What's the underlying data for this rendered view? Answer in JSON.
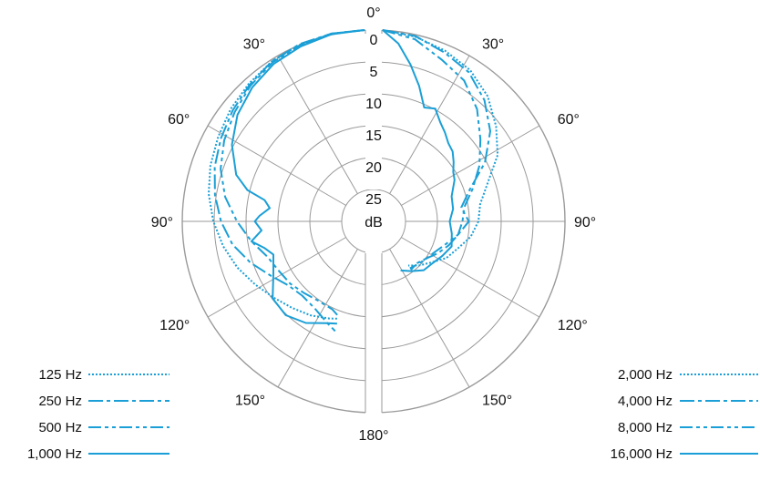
{
  "chart_data": {
    "type": "polar",
    "unit": "dB",
    "radial_ticks": [
      "0",
      "5",
      "10",
      "15",
      "20",
      "25"
    ],
    "radial_range": [
      0,
      25
    ],
    "angle_labels": {
      "left": [
        "0°",
        "30°",
        "60°",
        "90°",
        "120°",
        "150°",
        "180°"
      ],
      "right": [
        "30°",
        "60°",
        "90°",
        "120°",
        "150°"
      ]
    },
    "angle_values": [
      0,
      30,
      60,
      90,
      120,
      150,
      180
    ],
    "colors": {
      "accent": "#1a9fd6",
      "grid": "#9a9a9a",
      "text": "#111111"
    },
    "left_panel": {
      "series": [
        {
          "name": "125 Hz",
          "style": "dotted",
          "points": [
            [
              0,
              0
            ],
            [
              10,
              0.1
            ],
            [
              20,
              0.5
            ],
            [
              30,
              1
            ],
            [
              40,
              1.8
            ],
            [
              50,
              2.6
            ],
            [
              60,
              3.5
            ],
            [
              70,
              4.3
            ],
            [
              80,
              5.2
            ],
            [
              90,
              6.3
            ],
            [
              100,
              7.5
            ],
            [
              110,
              8.8
            ],
            [
              120,
              10.2
            ],
            [
              130,
              11.4
            ],
            [
              140,
              12.3
            ],
            [
              150,
              13
            ],
            [
              160,
              13.8
            ],
            [
              165,
              14.2
            ]
          ]
        },
        {
          "name": "250 Hz",
          "style": "dash-dot",
          "points": [
            [
              0,
              0
            ],
            [
              10,
              0.1
            ],
            [
              20,
              0.4
            ],
            [
              30,
              1
            ],
            [
              40,
              2
            ],
            [
              50,
              3
            ],
            [
              60,
              4
            ],
            [
              70,
              5
            ],
            [
              80,
              6.2
            ],
            [
              90,
              7.5
            ],
            [
              100,
              9
            ],
            [
              110,
              11
            ],
            [
              120,
              13
            ],
            [
              130,
              14.4
            ],
            [
              140,
              14.8
            ],
            [
              150,
              14.3
            ],
            [
              160,
              13
            ],
            [
              165,
              12.2
            ]
          ]
        },
        {
          "name": "500 Hz",
          "style": "dash-dot-dot",
          "points": [
            [
              0,
              0
            ],
            [
              10,
              0.1
            ],
            [
              20,
              0.6
            ],
            [
              30,
              1.2
            ],
            [
              40,
              2.2
            ],
            [
              50,
              3.4
            ],
            [
              60,
              4.6
            ],
            [
              70,
              6
            ],
            [
              80,
              7.8
            ],
            [
              90,
              10
            ],
            [
              100,
              12
            ],
            [
              110,
              13.8
            ],
            [
              120,
              14.5
            ],
            [
              130,
              14.8
            ],
            [
              140,
              15.3
            ],
            [
              150,
              15.6
            ],
            [
              160,
              15.3
            ],
            [
              165,
              14.5
            ]
          ]
        },
        {
          "name": "1,000 Hz",
          "style": "solid",
          "points": [
            [
              0,
              0
            ],
            [
              10,
              0.2
            ],
            [
              20,
              0.8
            ],
            [
              30,
              1.5
            ],
            [
              40,
              2.6
            ],
            [
              50,
              4
            ],
            [
              60,
              6
            ],
            [
              70,
              8.6
            ],
            [
              75,
              11
            ],
            [
              78,
              14
            ],
            [
              82,
              15
            ],
            [
              87,
              13.5
            ],
            [
              90,
              12.8
            ],
            [
              95,
              13.8
            ],
            [
              100,
              12
            ],
            [
              105,
              13.8
            ],
            [
              110,
              14.8
            ],
            [
              120,
              13.5
            ],
            [
              130,
              11.2
            ],
            [
              140,
              10.8
            ],
            [
              150,
              11.6
            ],
            [
              160,
              13
            ],
            [
              165,
              13.4
            ]
          ]
        }
      ]
    },
    "right_panel": {
      "series": [
        {
          "name": "2,000 Hz",
          "style": "dotted",
          "points": [
            [
              0,
              0
            ],
            [
              10,
              0.6
            ],
            [
              20,
              1.5
            ],
            [
              30,
              2.6
            ],
            [
              40,
              4.4
            ],
            [
              50,
              6.8
            ],
            [
              60,
              9.2
            ],
            [
              70,
              12.5
            ],
            [
              80,
              14.5
            ],
            [
              90,
              15
            ],
            [
              100,
              16
            ],
            [
              110,
              17.5
            ],
            [
              120,
              18.5
            ],
            [
              130,
              20
            ],
            [
              140,
              21
            ],
            [
              150,
              22
            ]
          ]
        },
        {
          "name": "4,000 Hz",
          "style": "dash-dot",
          "points": [
            [
              0,
              0
            ],
            [
              10,
              0.5
            ],
            [
              20,
              1.8
            ],
            [
              30,
              3
            ],
            [
              40,
              5.2
            ],
            [
              50,
              8
            ],
            [
              60,
              11.5
            ],
            [
              70,
              15.5
            ],
            [
              80,
              17.5
            ],
            [
              90,
              16.5
            ],
            [
              100,
              18
            ],
            [
              110,
              19
            ],
            [
              120,
              20
            ],
            [
              130,
              21
            ],
            [
              140,
              21.5
            ],
            [
              150,
              21.2
            ]
          ]
        },
        {
          "name": "8,000 Hz",
          "style": "dash-dot-dot",
          "points": [
            [
              0,
              0
            ],
            [
              10,
              1
            ],
            [
              20,
              3
            ],
            [
              30,
              4.5
            ],
            [
              40,
              7
            ],
            [
              50,
              10
            ],
            [
              60,
              12.5
            ],
            [
              70,
              15
            ],
            [
              80,
              17
            ],
            [
              90,
              17.5
            ],
            [
              100,
              18
            ],
            [
              110,
              19.5
            ],
            [
              120,
              20.5
            ],
            [
              130,
              21
            ],
            [
              140,
              21.3
            ],
            [
              150,
              21.5
            ]
          ]
        },
        {
          "name": "16,000 Hz",
          "style": "solid",
          "points": [
            [
              0,
              0
            ],
            [
              5,
              2
            ],
            [
              10,
              5
            ],
            [
              15,
              8
            ],
            [
              20,
              11
            ],
            [
              25,
              10.5
            ],
            [
              30,
              12
            ],
            [
              35,
              13
            ],
            [
              40,
              14
            ],
            [
              45,
              14.5
            ],
            [
              50,
              15.5
            ],
            [
              55,
              16.5
            ],
            [
              60,
              17
            ],
            [
              70,
              18.5
            ],
            [
              80,
              18.8
            ],
            [
              90,
              19.5
            ],
            [
              100,
              19
            ],
            [
              110,
              18.5
            ],
            [
              120,
              19.2
            ],
            [
              130,
              19.8
            ],
            [
              140,
              20
            ],
            [
              150,
              21
            ],
            [
              160,
              21.8
            ]
          ]
        }
      ]
    },
    "legend": {
      "left": [
        {
          "label": "125 Hz",
          "style": "dotted"
        },
        {
          "label": "250 Hz",
          "style": "dash-dot"
        },
        {
          "label": "500 Hz",
          "style": "dash-dot-dot"
        },
        {
          "label": "1,000 Hz",
          "style": "solid"
        }
      ],
      "right": [
        {
          "label": "2,000 Hz",
          "style": "dotted"
        },
        {
          "label": "4,000 Hz",
          "style": "dash-dot"
        },
        {
          "label": "8,000 Hz",
          "style": "dash-dot-dot"
        },
        {
          "label": "16,000 Hz",
          "style": "solid"
        }
      ]
    }
  }
}
